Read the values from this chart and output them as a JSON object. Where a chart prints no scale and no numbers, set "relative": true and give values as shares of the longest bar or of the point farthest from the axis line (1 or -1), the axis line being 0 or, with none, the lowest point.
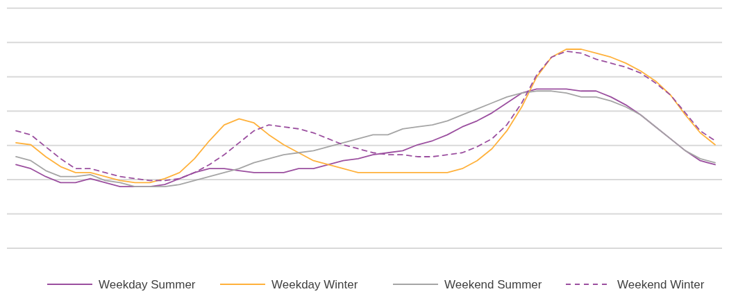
{
  "chart_data": {
    "type": "line",
    "relative": true,
    "grid": true,
    "legend": "bottom",
    "categories": [
      null,
      null,
      null,
      null,
      null,
      null,
      null,
      null,
      null,
      null,
      null,
      null,
      null,
      null,
      null,
      null,
      null,
      null,
      null,
      null,
      null,
      null,
      null,
      null,
      null,
      null,
      null,
      null,
      null,
      null,
      null,
      null,
      null,
      null,
      null,
      null,
      null,
      null,
      null,
      null,
      null,
      null,
      null,
      null,
      null,
      null,
      null,
      null
    ],
    "series": [
      {
        "name": "Weekday Summer",
        "color": "#9b4f9f",
        "line_style": "solid",
        "values": [
          0.42,
          0.4,
          0.36,
          0.33,
          0.33,
          0.35,
          0.33,
          0.31,
          0.31,
          0.31,
          0.32,
          0.35,
          0.38,
          0.4,
          0.4,
          0.39,
          0.38,
          0.38,
          0.38,
          0.4,
          0.4,
          0.42,
          0.44,
          0.45,
          0.47,
          0.48,
          0.49,
          0.52,
          0.54,
          0.57,
          0.61,
          0.64,
          0.68,
          0.73,
          0.78,
          0.8,
          0.8,
          0.8,
          0.79,
          0.79,
          0.76,
          0.72,
          0.67,
          0.61,
          0.55,
          0.49,
          0.44,
          0.42
        ]
      },
      {
        "name": "Weekday Winter",
        "color": "#ffb13b",
        "line_style": "solid",
        "values": [
          0.53,
          0.52,
          0.46,
          0.41,
          0.38,
          0.38,
          0.36,
          0.34,
          0.33,
          0.33,
          0.35,
          0.38,
          0.45,
          0.54,
          0.62,
          0.65,
          0.63,
          0.57,
          0.52,
          0.48,
          0.44,
          0.42,
          0.4,
          0.38,
          0.38,
          0.38,
          0.38,
          0.38,
          0.38,
          0.38,
          0.4,
          0.44,
          0.5,
          0.59,
          0.71,
          0.86,
          0.96,
          1,
          1,
          0.98,
          0.96,
          0.93,
          0.89,
          0.84,
          0.77,
          0.67,
          0.58,
          0.52
        ]
      },
      {
        "name": "Weekend Summer",
        "color": "#a5a5a5",
        "line_style": "solid",
        "values": [
          0.46,
          0.44,
          0.39,
          0.36,
          0.36,
          0.37,
          0.34,
          0.33,
          0.31,
          0.31,
          0.31,
          0.32,
          0.34,
          0.36,
          0.38,
          0.4,
          0.43,
          0.45,
          0.47,
          0.48,
          0.49,
          0.51,
          0.53,
          0.55,
          0.57,
          0.57,
          0.6,
          0.61,
          0.62,
          0.64,
          0.67,
          0.7,
          0.73,
          0.76,
          0.78,
          0.79,
          0.79,
          0.78,
          0.76,
          0.76,
          0.74,
          0.71,
          0.67,
          0.61,
          0.55,
          0.49,
          0.45,
          0.43
        ]
      },
      {
        "name": "Weekend Winter",
        "color": "#9b4f9f",
        "line_style": "dashed",
        "values": [
          0.59,
          0.57,
          0.51,
          0.45,
          0.4,
          0.4,
          0.38,
          0.36,
          0.35,
          0.34,
          0.34,
          0.35,
          0.38,
          0.42,
          0.47,
          0.53,
          0.59,
          0.62,
          0.61,
          0.6,
          0.58,
          0.55,
          0.52,
          0.5,
          0.48,
          0.47,
          0.47,
          0.46,
          0.46,
          0.47,
          0.48,
          0.51,
          0.55,
          0.62,
          0.73,
          0.87,
          0.96,
          0.99,
          0.98,
          0.95,
          0.93,
          0.91,
          0.88,
          0.83,
          0.77,
          0.68,
          0.59,
          0.54
        ]
      }
    ]
  }
}
